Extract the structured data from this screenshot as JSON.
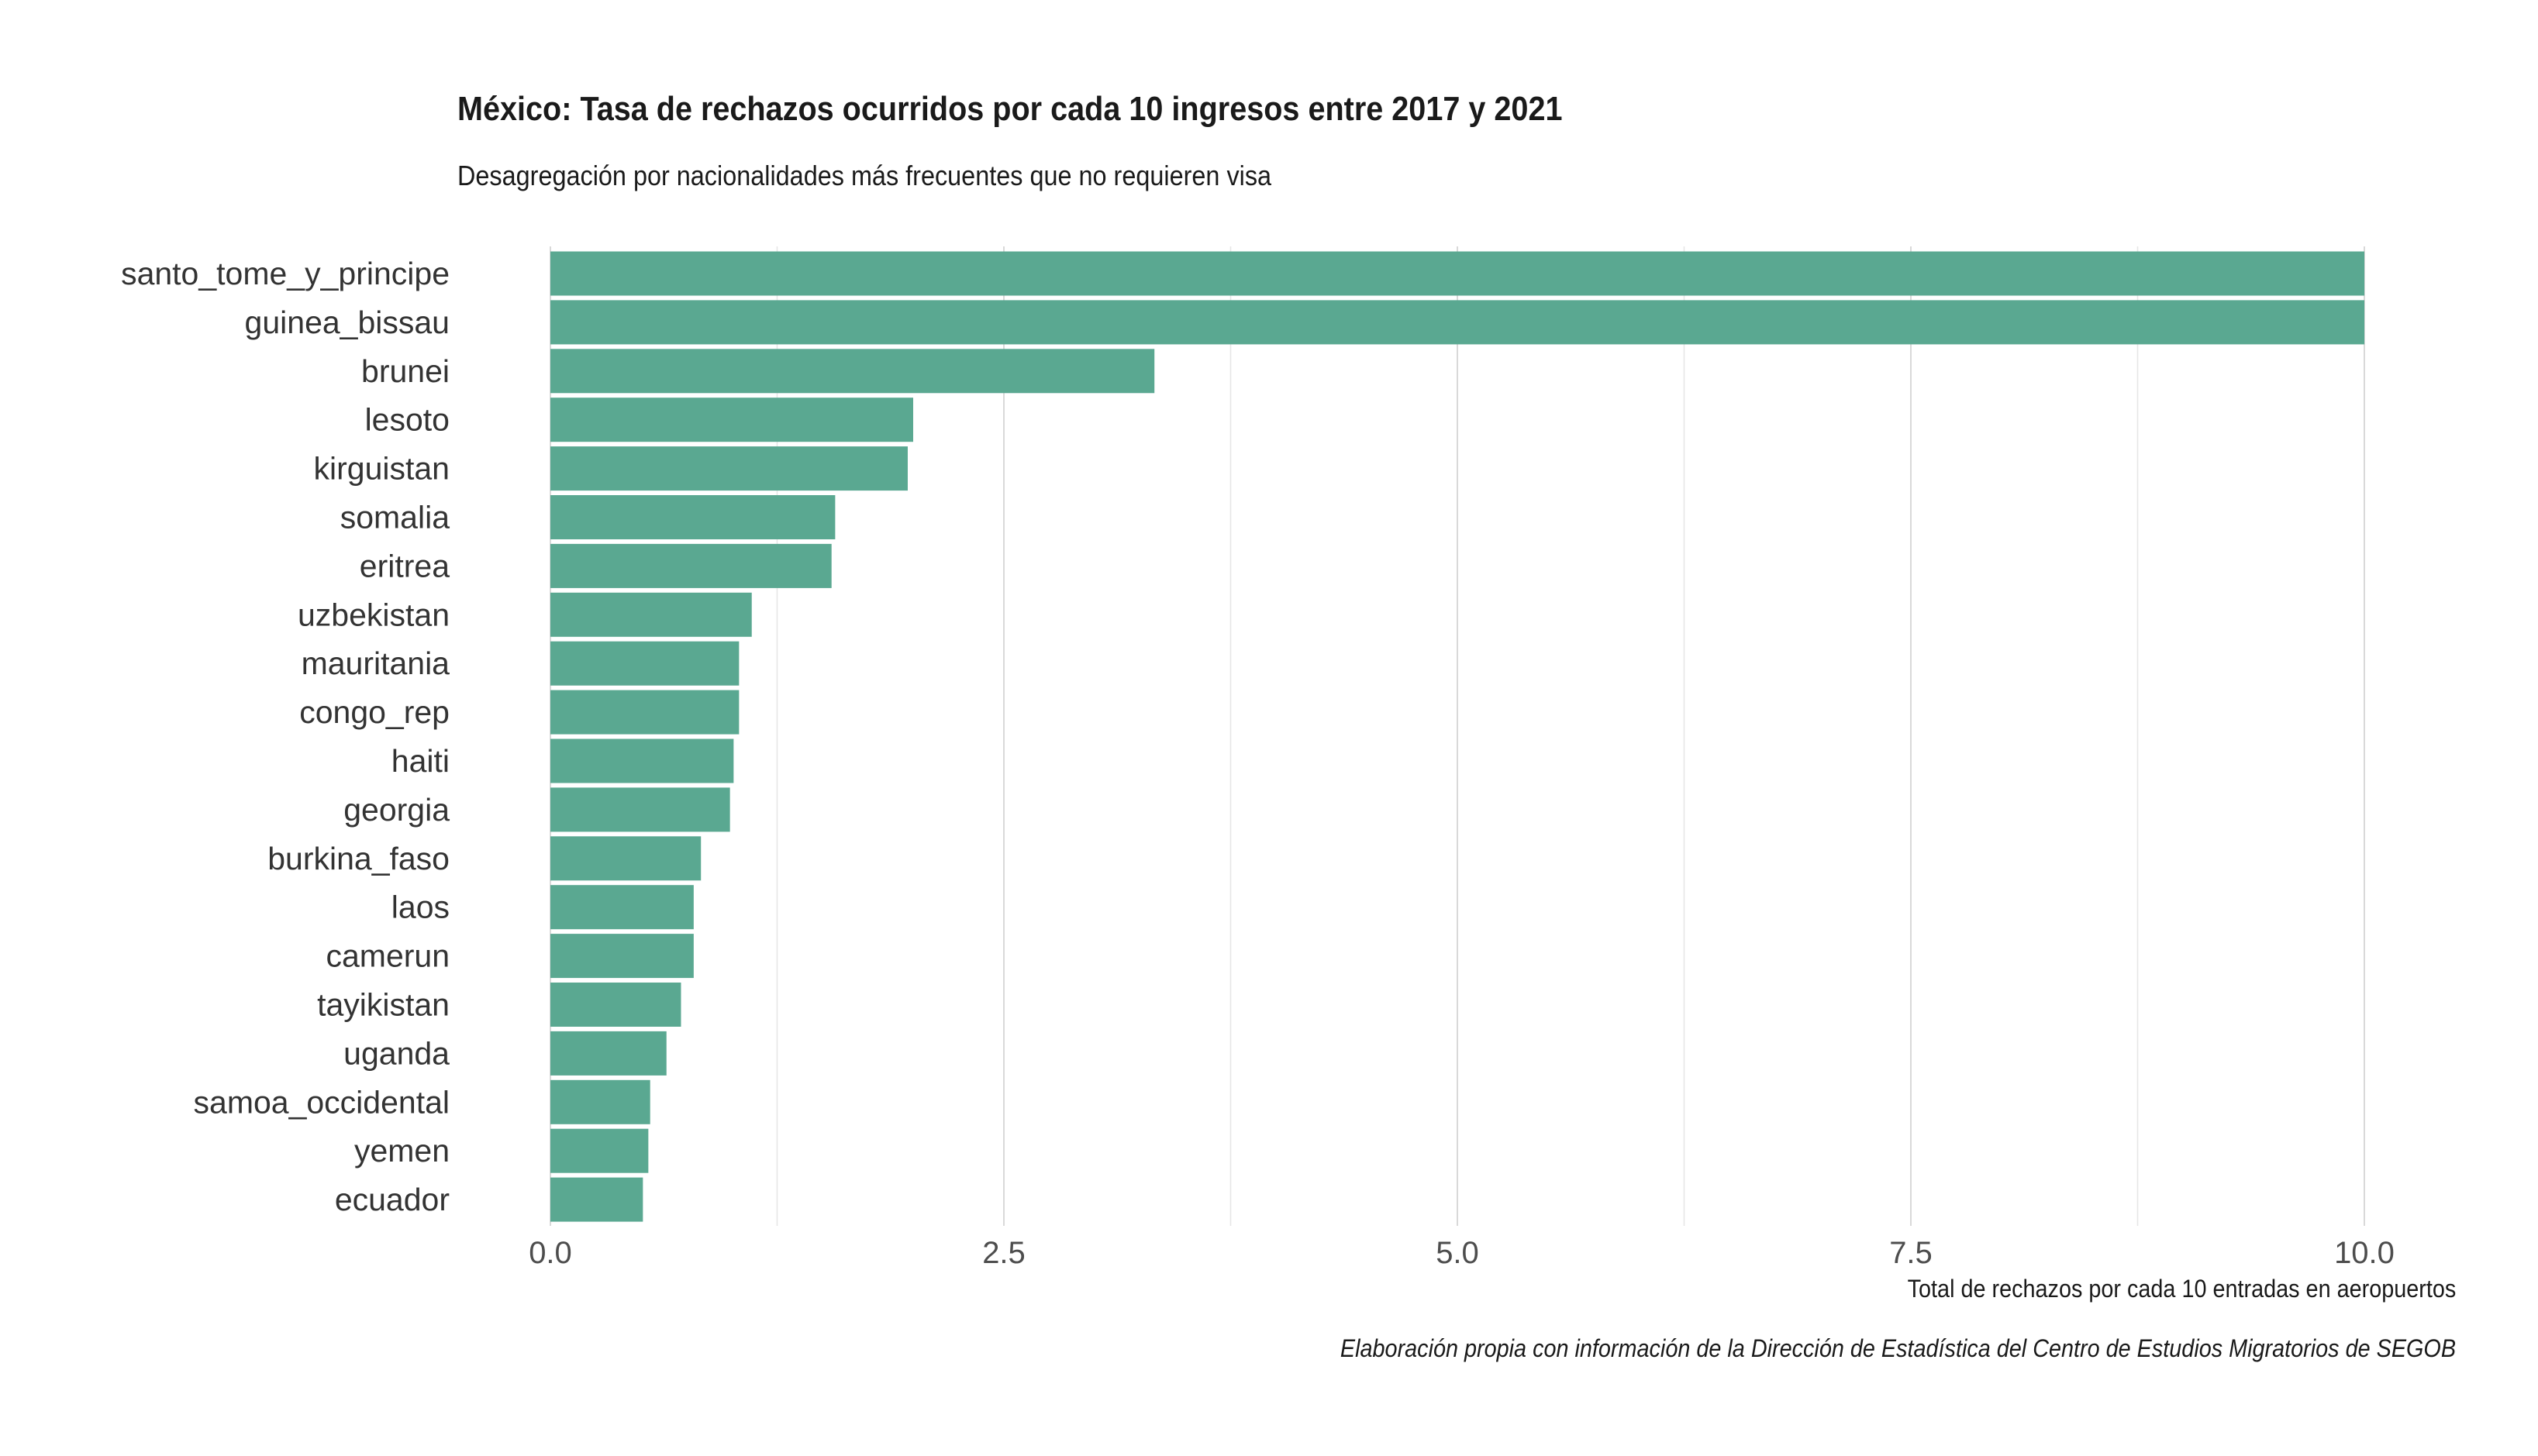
{
  "chart_data": {
    "type": "bar",
    "orientation": "horizontal",
    "title": "México: Tasa de rechazos ocurridos por cada 10 ingresos entre 2017 y 2021",
    "subtitle": "Desagregación por nacionalidades más frecuentes que no requieren visa",
    "xlabel": "Total de rechazos por cada 10 entradas en aeropuertos",
    "caption": "Elaboración propia con información de la Dirección de Estadística del Centro de Estudios Migratorios de SEGOB",
    "categories": [
      "santo_tome_y_principe",
      "guinea_bissau",
      "brunei",
      "lesoto",
      "kirguistan",
      "somalia",
      "eritrea",
      "uzbekistan",
      "mauritania",
      "congo_rep",
      "haiti",
      "georgia",
      "burkina_faso",
      "laos",
      "camerun",
      "tayikistan",
      "uganda",
      "samoa_occidental",
      "yemen",
      "ecuador"
    ],
    "values": [
      10.0,
      10.0,
      3.33,
      2.0,
      1.97,
      1.57,
      1.55,
      1.11,
      1.04,
      1.04,
      1.01,
      0.99,
      0.83,
      0.79,
      0.79,
      0.72,
      0.64,
      0.55,
      0.54,
      0.51
    ],
    "xlim": [
      0,
      10.5
    ],
    "xticks": [
      0,
      2.5,
      5,
      7.5,
      10
    ],
    "xtick_labels": [
      "0.0",
      "2.5",
      "5.0",
      "7.5",
      "10.0"
    ],
    "grid": "vertical major and minor",
    "bar_color": "#5aa891"
  }
}
